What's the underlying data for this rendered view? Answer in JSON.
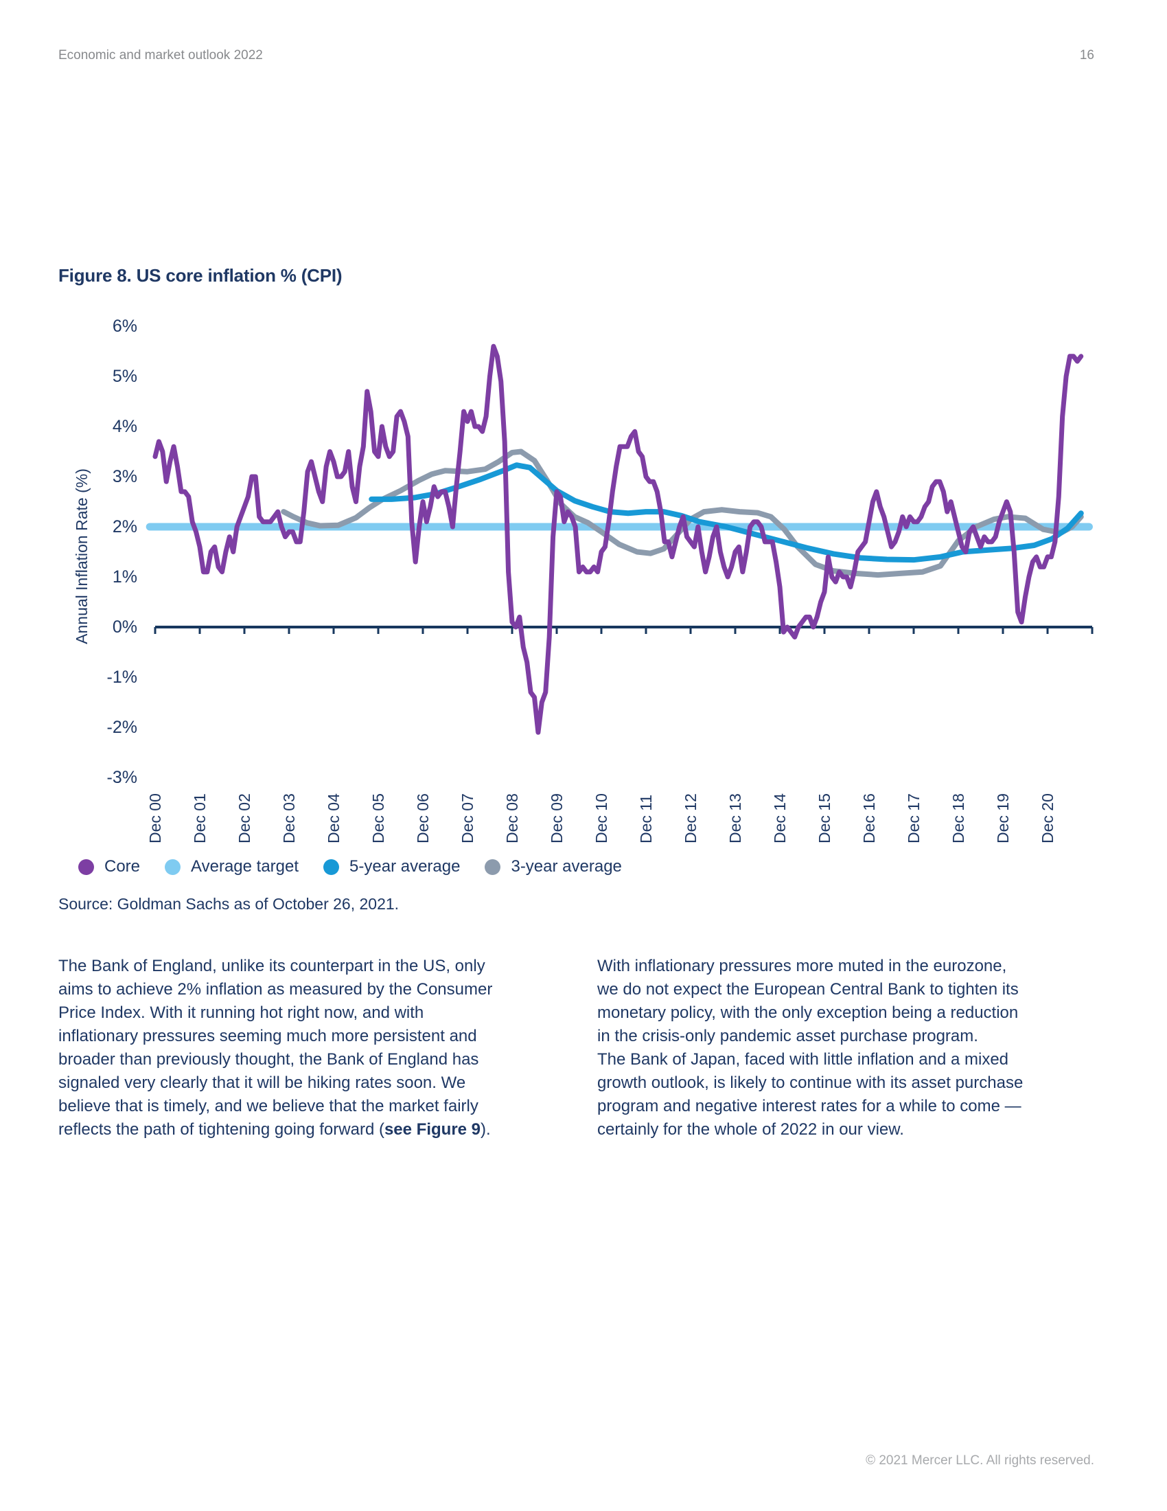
{
  "page": {
    "header": {
      "title": "Economic and market outlook 2022",
      "page_number": "16"
    },
    "footer": {
      "copyright": "© 2021 Mercer LLC. All rights reserved."
    }
  },
  "figure": {
    "title": "Figure 8. US core inflation % (CPI)",
    "source": "Source: Goldman Sachs as of October 26, 2021."
  },
  "chart_data": {
    "type": "line",
    "title": "Figure 8. US core inflation % (CPI)",
    "xlabel": "",
    "ylabel": "Annual Inflation Rate (%)",
    "ylim": [
      -3,
      6
    ],
    "grid": false,
    "legend_position": "bottom",
    "yticks": [
      {
        "value": 6,
        "label": "6%"
      },
      {
        "value": 5,
        "label": "5%"
      },
      {
        "value": 4,
        "label": "4%"
      },
      {
        "value": 3,
        "label": "3%"
      },
      {
        "value": 2,
        "label": "2%"
      },
      {
        "value": 1,
        "label": "1%"
      },
      {
        "value": 0,
        "label": "0%"
      },
      {
        "value": -1,
        "label": "-1%"
      },
      {
        "value": -2,
        "label": "-2%"
      },
      {
        "value": -3,
        "label": "-3%"
      }
    ],
    "xticks": [
      "Dec 00",
      "Dec 01",
      "Dec 02",
      "Dec 03",
      "Dec 04",
      "Dec 05",
      "Dec 06",
      "Dec 07",
      "Dec 08",
      "Dec 09",
      "Dec 10",
      "Dec 11",
      "Dec 12",
      "Dec 13",
      "Dec 14",
      "Dec 15",
      "Dec 16",
      "Dec 17",
      "Dec 18",
      "Dec 19",
      "Dec 20"
    ],
    "x_unit": "years since Dec 2000",
    "legend_order": [
      3,
      0,
      2,
      1
    ],
    "series": [
      {
        "name": "Average target",
        "color": "#7FCBF1",
        "points": [
          [
            -0.12,
            2.0
          ],
          [
            20.93,
            2.0
          ]
        ]
      },
      {
        "name": "3-year average",
        "color": "#8C9BAD",
        "points": [
          [
            2.88,
            2.3
          ],
          [
            3.1,
            2.2
          ],
          [
            3.4,
            2.08
          ],
          [
            3.7,
            2.02
          ],
          [
            4.1,
            2.03
          ],
          [
            4.5,
            2.18
          ],
          [
            4.8,
            2.38
          ],
          [
            5.1,
            2.55
          ],
          [
            5.5,
            2.72
          ],
          [
            5.9,
            2.92
          ],
          [
            6.2,
            3.05
          ],
          [
            6.5,
            3.12
          ],
          [
            7.0,
            3.1
          ],
          [
            7.4,
            3.15
          ],
          [
            7.7,
            3.3
          ],
          [
            8.0,
            3.48
          ],
          [
            8.2,
            3.5
          ],
          [
            8.5,
            3.32
          ],
          [
            8.8,
            2.9
          ],
          [
            9.1,
            2.45
          ],
          [
            9.4,
            2.2
          ],
          [
            9.7,
            2.08
          ],
          [
            10.0,
            1.9
          ],
          [
            10.4,
            1.65
          ],
          [
            10.8,
            1.5
          ],
          [
            11.1,
            1.47
          ],
          [
            11.4,
            1.56
          ],
          [
            11.7,
            1.85
          ],
          [
            12.0,
            2.15
          ],
          [
            12.3,
            2.3
          ],
          [
            12.7,
            2.34
          ],
          [
            13.1,
            2.3
          ],
          [
            13.5,
            2.28
          ],
          [
            13.8,
            2.2
          ],
          [
            14.1,
            1.95
          ],
          [
            14.4,
            1.6
          ],
          [
            14.8,
            1.25
          ],
          [
            15.2,
            1.12
          ],
          [
            15.7,
            1.07
          ],
          [
            16.2,
            1.04
          ],
          [
            16.7,
            1.07
          ],
          [
            17.2,
            1.1
          ],
          [
            17.6,
            1.22
          ],
          [
            18.0,
            1.72
          ],
          [
            18.4,
            2.0
          ],
          [
            18.8,
            2.15
          ],
          [
            19.1,
            2.2
          ],
          [
            19.5,
            2.17
          ],
          [
            19.9,
            1.95
          ],
          [
            20.3,
            1.88
          ],
          [
            20.55,
            2.0
          ],
          [
            20.75,
            2.2
          ]
        ]
      },
      {
        "name": "5-year average",
        "color": "#1899D6",
        "points": [
          [
            4.85,
            2.55
          ],
          [
            5.3,
            2.55
          ],
          [
            5.8,
            2.58
          ],
          [
            6.3,
            2.66
          ],
          [
            6.8,
            2.8
          ],
          [
            7.3,
            2.95
          ],
          [
            7.8,
            3.12
          ],
          [
            8.1,
            3.23
          ],
          [
            8.4,
            3.18
          ],
          [
            8.7,
            2.95
          ],
          [
            9.0,
            2.72
          ],
          [
            9.4,
            2.52
          ],
          [
            9.8,
            2.4
          ],
          [
            10.2,
            2.3
          ],
          [
            10.6,
            2.27
          ],
          [
            11.0,
            2.3
          ],
          [
            11.4,
            2.3
          ],
          [
            11.8,
            2.22
          ],
          [
            12.2,
            2.1
          ],
          [
            12.8,
            2.0
          ],
          [
            13.4,
            1.86
          ],
          [
            14.0,
            1.72
          ],
          [
            14.6,
            1.58
          ],
          [
            15.2,
            1.46
          ],
          [
            15.8,
            1.38
          ],
          [
            16.4,
            1.35
          ],
          [
            17.0,
            1.34
          ],
          [
            17.6,
            1.4
          ],
          [
            18.1,
            1.5
          ],
          [
            18.7,
            1.54
          ],
          [
            19.2,
            1.57
          ],
          [
            19.7,
            1.63
          ],
          [
            20.1,
            1.76
          ],
          [
            20.45,
            1.97
          ],
          [
            20.75,
            2.27
          ]
        ]
      },
      {
        "name": "Core",
        "color": "#7D3EA3",
        "start": "Dec 2000",
        "frequency": "monthly",
        "values": [
          3.4,
          3.7,
          3.5,
          2.9,
          3.3,
          3.6,
          3.2,
          2.7,
          2.7,
          2.6,
          2.1,
          1.9,
          1.6,
          1.1,
          1.1,
          1.5,
          1.6,
          1.2,
          1.1,
          1.5,
          1.8,
          1.5,
          2.0,
          2.2,
          2.4,
          2.6,
          3.0,
          3.0,
          2.2,
          2.1,
          2.1,
          2.1,
          2.2,
          2.3,
          2.0,
          1.8,
          1.9,
          1.9,
          1.7,
          1.7,
          2.3,
          3.1,
          3.3,
          3.0,
          2.7,
          2.5,
          3.2,
          3.5,
          3.3,
          3.0,
          3.0,
          3.1,
          3.5,
          2.8,
          2.5,
          3.2,
          3.6,
          4.7,
          4.3,
          3.5,
          3.4,
          4.0,
          3.6,
          3.4,
          3.5,
          4.2,
          4.3,
          4.1,
          3.8,
          2.1,
          1.3,
          2.0,
          2.5,
          2.1,
          2.4,
          2.8,
          2.6,
          2.7,
          2.7,
          2.4,
          2.0,
          2.8,
          3.5,
          4.3,
          4.1,
          4.3,
          4.0,
          4.0,
          3.9,
          4.2,
          5.0,
          5.6,
          5.4,
          4.9,
          3.7,
          1.1,
          0.1,
          0.0,
          0.2,
          -0.4,
          -0.7,
          -1.3,
          -1.4,
          -2.1,
          -1.5,
          -1.3,
          -0.2,
          1.8,
          2.7,
          2.6,
          2.1,
          2.3,
          2.2,
          2.0,
          1.1,
          1.2,
          1.1,
          1.1,
          1.2,
          1.1,
          1.5,
          1.6,
          2.1,
          2.7,
          3.2,
          3.6,
          3.6,
          3.6,
          3.8,
          3.9,
          3.5,
          3.4,
          3.0,
          2.9,
          2.9,
          2.7,
          2.3,
          1.7,
          1.7,
          1.4,
          1.7,
          2.0,
          2.2,
          1.8,
          1.7,
          1.6,
          2.0,
          1.5,
          1.1,
          1.4,
          1.8,
          2.0,
          1.5,
          1.2,
          1.0,
          1.2,
          1.5,
          1.6,
          1.1,
          1.5,
          2.0,
          2.1,
          2.1,
          2.0,
          1.7,
          1.7,
          1.7,
          1.3,
          0.8,
          -0.1,
          0.0,
          -0.1,
          -0.2,
          0.0,
          0.1,
          0.2,
          0.2,
          0.0,
          0.2,
          0.5,
          0.7,
          1.4,
          1.0,
          0.9,
          1.1,
          1.0,
          1.0,
          0.8,
          1.1,
          1.5,
          1.6,
          1.7,
          2.1,
          2.5,
          2.7,
          2.4,
          2.2,
          1.9,
          1.6,
          1.7,
          1.9,
          2.2,
          2.0,
          2.2,
          2.1,
          2.1,
          2.2,
          2.4,
          2.5,
          2.8,
          2.9,
          2.9,
          2.7,
          2.3,
          2.5,
          2.2,
          1.9,
          1.6,
          1.5,
          1.9,
          2.0,
          1.8,
          1.6,
          1.8,
          1.7,
          1.7,
          1.8,
          2.1,
          2.3,
          2.5,
          2.3,
          1.5,
          0.3,
          0.1,
          0.6,
          1.0,
          1.3,
          1.4,
          1.2,
          1.2,
          1.4,
          1.4,
          1.7,
          2.6,
          4.2,
          5.0,
          5.4,
          5.4,
          5.3,
          5.4
        ]
      }
    ],
    "colors": {
      "axis": "#17375E",
      "tick_text": "#1F3864"
    }
  },
  "body": {
    "left_column": {
      "lines": [
        "The Bank of England, unlike its counterpart in the US, only",
        "aims to achieve 2% inflation as measured by the Consumer",
        "Price Index. With it running hot right now, and with",
        "inflationary pressures seeming much more persistent and",
        "broader than previously thought, the Bank of England has",
        "signaled very clearly that it will be hiking rates soon. We",
        "believe that is timely, and we believe that the market fairly",
        [
          {
            "text": "reflects the path of tightening going forward ("
          },
          {
            "text": "see Figure 9",
            "bold": true
          },
          {
            "text": ")."
          }
        ]
      ]
    },
    "right_column": {
      "lines": [
        "With inflationary pressures more muted in the eurozone,",
        "we do not expect the European Central Bank to tighten its",
        "monetary policy, with the only exception being a reduction",
        "in the crisis-only pandemic asset purchase program.",
        "The Bank of Japan, faced with little inflation and a mixed",
        "growth outlook, is likely to continue with its asset purchase",
        "program and negative interest rates for a while to come —",
        "certainly for the whole of 2022 in our view."
      ]
    }
  }
}
